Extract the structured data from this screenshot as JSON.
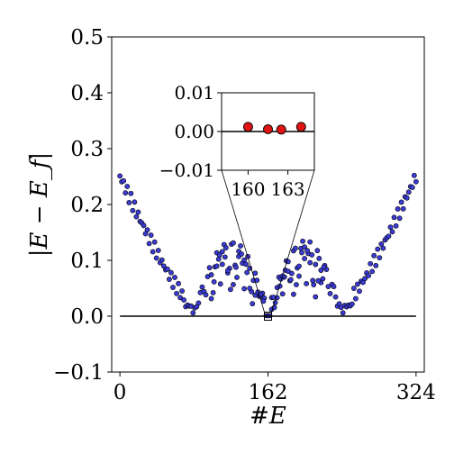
{
  "chart_data": {
    "type": "scatter",
    "xlabel": "#E",
    "ylabel": "|E − E_f|",
    "xlim": [
      -9,
      333
    ],
    "ylim": [
      -0.1,
      0.5
    ],
    "xticks": [
      0,
      162,
      324
    ],
    "yticks": [
      -0.1,
      0.0,
      0.1,
      0.2,
      0.3,
      0.4,
      0.5
    ],
    "xtick_labels": [
      "0",
      "162",
      "324"
    ],
    "ytick_labels": [
      "−0.1",
      "0.0",
      "0.1",
      "0.2",
      "0.3",
      "0.4",
      "0.5"
    ],
    "zero_line": true,
    "grid": false,
    "marker_color": "#3b3bd6",
    "marker_edge": "#000000",
    "baseline_color": "#000000",
    "highlight": {
      "x_range": [
        160,
        163
      ],
      "box_center_x": 162,
      "box_center_y": 0.0
    },
    "inset": {
      "xlim": [
        158,
        165
      ],
      "ylim": [
        -0.01,
        0.01
      ],
      "xticks": [
        160,
        163
      ],
      "yticks": [
        -0.01,
        0.0,
        0.01
      ],
      "xtick_labels": [
        "160",
        "163"
      ],
      "ytick_labels": [
        "−0.01",
        "0.00",
        "0.01"
      ],
      "marker_color": "#e01414",
      "points": [
        {
          "x": 160,
          "y": 0.0012
        },
        {
          "x": 161.5,
          "y": 0.0006
        },
        {
          "x": 162.5,
          "y": 0.0005
        },
        {
          "x": 164,
          "y": 0.0012
        }
      ]
    }
  }
}
